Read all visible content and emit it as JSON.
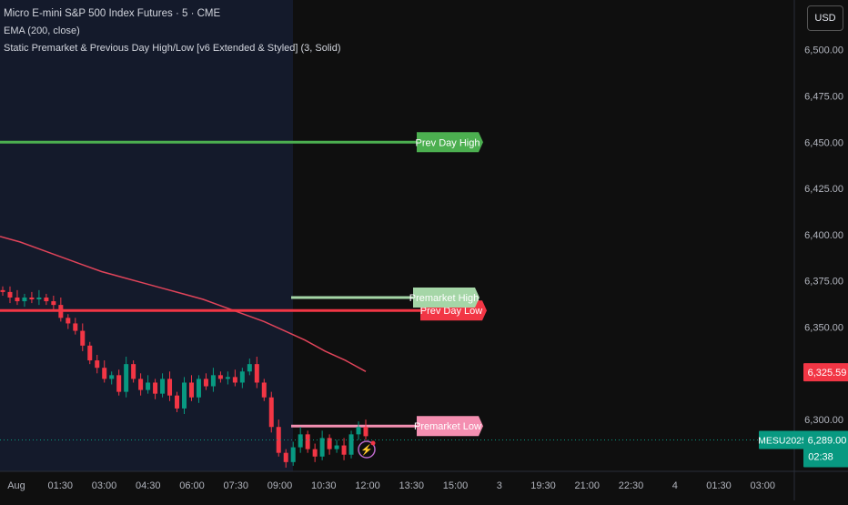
{
  "legend": {
    "symbol": "Micro E-mini S&P 500 Index Futures · 5 · CME",
    "ema": "EMA (200, close)",
    "indicator": "Static Premarket & Previous Day High/Low [v6 Extended & Styled] (3, Solid)"
  },
  "currency": "USD",
  "colors": {
    "background": "#0f0f0f",
    "session_shade": "#141a2b",
    "green": "#4caf50",
    "red": "#f23645",
    "ema": "#e0445a",
    "premarket_high": "#a5d6a7",
    "premarket_low": "#f48fb1",
    "last_price": "#089981",
    "price_up": "#089981",
    "price_down": "#f23645"
  },
  "chart_data": {
    "type": "candlestick",
    "ylim": [
      6272,
      6522
    ],
    "y_ticks": [
      {
        "value": 6500,
        "label": "6,500.00"
      },
      {
        "value": 6475,
        "label": "6,475.00"
      },
      {
        "value": 6450,
        "label": "6,450.00"
      },
      {
        "value": 6425,
        "label": "6,425.00"
      },
      {
        "value": 6400,
        "label": "6,400.00"
      },
      {
        "value": 6375,
        "label": "6,375.00"
      },
      {
        "value": 6350,
        "label": "6,350.00"
      },
      {
        "value": 6325,
        "label": "6,325.00"
      },
      {
        "value": 6300,
        "label": "6,300.00"
      }
    ],
    "x_ticks": [
      "Aug",
      "01:30",
      "03:00",
      "04:30",
      "06:00",
      "07:30",
      "09:00",
      "10:30",
      "12:00",
      "13:30",
      "15:00",
      "3",
      "19:30",
      "21:00",
      "22:30",
      "4",
      "01:30",
      "03:00"
    ],
    "levels": [
      {
        "label": "Prev Day High",
        "value": 6450,
        "color": "#4caf50"
      },
      {
        "label": "Premarket High",
        "value": 6366,
        "color": "#a5d6a7"
      },
      {
        "label": "Prev Day Low",
        "value": 6359,
        "color": "#f23645"
      },
      {
        "label": "Premarket Low",
        "value": 6296.5,
        "color": "#f48fb1"
      }
    ],
    "ema_points": [
      6399,
      6396,
      6392,
      6388,
      6384,
      6380,
      6377,
      6374,
      6371,
      6368,
      6365,
      6361,
      6357,
      6353,
      6348,
      6343,
      6337,
      6332,
      6326
    ],
    "price_series": [
      6369,
      6366,
      6364,
      6366,
      6365,
      6366,
      6364,
      6362,
      6355,
      6352,
      6348,
      6340,
      6332,
      6328,
      6322,
      6324,
      6315,
      6330,
      6322,
      6316,
      6320,
      6314,
      6322,
      6313,
      6306,
      6320,
      6312,
      6322,
      6318,
      6324,
      6322,
      6323,
      6320,
      6326,
      6330,
      6320,
      6312,
      6296,
      6282,
      6277,
      6285,
      6292,
      6284,
      6280,
      6290,
      6284,
      6286,
      6281,
      6292,
      6296,
      6291
    ],
    "last_price": {
      "symbol": "MESU2025",
      "value": "6,289.00",
      "countdown": "02:38"
    },
    "ema_price": "6,325.59"
  }
}
